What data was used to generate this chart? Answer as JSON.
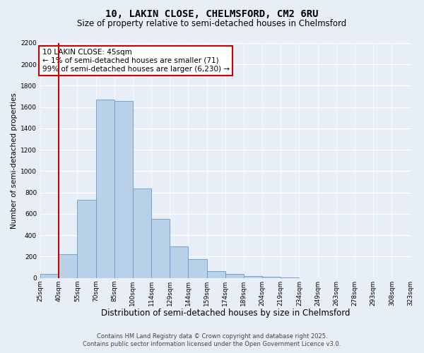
{
  "title": "10, LAKIN CLOSE, CHELMSFORD, CM2 6RU",
  "subtitle": "Size of property relative to semi-detached houses in Chelmsford",
  "xlabel": "Distribution of semi-detached houses by size in Chelmsford",
  "ylabel": "Number of semi-detached properties",
  "bar_values": [
    40,
    225,
    730,
    1670,
    1655,
    840,
    555,
    295,
    175,
    65,
    35,
    15,
    10,
    5,
    0,
    0,
    0,
    0,
    0,
    0
  ],
  "tick_labels": [
    "25sqm",
    "40sqm",
    "55sqm",
    "70sqm",
    "85sqm",
    "100sqm",
    "114sqm",
    "129sqm",
    "144sqm",
    "159sqm",
    "174sqm",
    "189sqm",
    "204sqm",
    "219sqm",
    "234sqm",
    "249sqm",
    "263sqm",
    "278sqm",
    "293sqm",
    "308sqm",
    "323sqm"
  ],
  "n_bins": 20,
  "bar_color": "#b8d0e8",
  "bar_edge_color": "#6699cc",
  "vline_pos": 1,
  "vline_color": "#cc0000",
  "annotation_text": "10 LAKIN CLOSE: 45sqm\n← 1% of semi-detached houses are smaller (71)\n99% of semi-detached houses are larger (6,230) →",
  "annotation_box_color": "#ffffff",
  "annotation_box_edge": "#cc0000",
  "ylim": [
    0,
    2200
  ],
  "yticks": [
    0,
    200,
    400,
    600,
    800,
    1000,
    1200,
    1400,
    1600,
    1800,
    2000,
    2200
  ],
  "background_color": "#e8eef8",
  "grid_color": "#ffffff",
  "footer_line1": "Contains HM Land Registry data © Crown copyright and database right 2025.",
  "footer_line2": "Contains public sector information licensed under the Open Government Licence v3.0.",
  "title_fontsize": 10,
  "subtitle_fontsize": 8.5,
  "xlabel_fontsize": 8.5,
  "ylabel_fontsize": 7.5,
  "tick_fontsize": 6.5,
  "footer_fontsize": 6,
  "annot_fontsize": 7.5
}
